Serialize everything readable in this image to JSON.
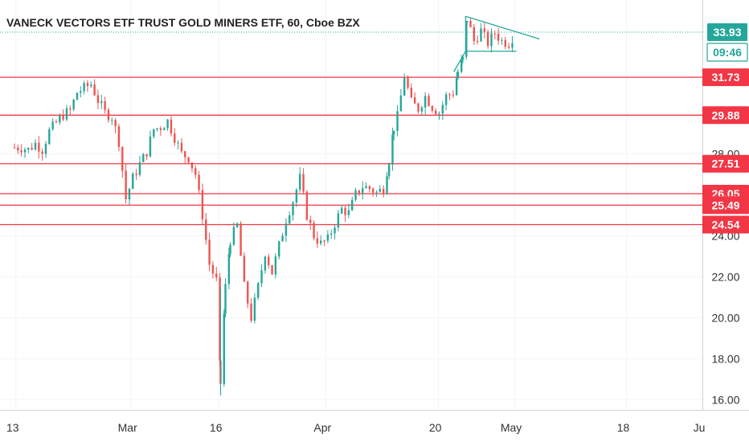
{
  "chart_data": {
    "type": "candlestick",
    "title": "VANECK VECTORS ETF TRUST GOLD MINERS ETF, 60, Cboe BZX",
    "ylim": [
      15.5,
      35.5
    ],
    "y_ticks": [
      {
        "value": 16,
        "label": "16.00"
      },
      {
        "value": 18,
        "label": "18.00"
      },
      {
        "value": 20,
        "label": "20.00"
      },
      {
        "value": 22,
        "label": "22.00"
      },
      {
        "value": 24,
        "label": "24.00"
      },
      {
        "value": 28,
        "label": "28.00"
      }
    ],
    "x_ticks": [
      {
        "label": "13",
        "slot": 0.2
      },
      {
        "label": "Mar",
        "slot": 16.7
      },
      {
        "label": "16",
        "slot": 29.4
      },
      {
        "label": "Apr",
        "slot": 44.7
      },
      {
        "label": "20",
        "slot": 60.9
      },
      {
        "label": "May",
        "slot": 71.8
      },
      {
        "label": "18",
        "slot": 87.9
      },
      {
        "label": "Ju",
        "slot": 98.8
      }
    ],
    "slot_range": [
      0,
      98.8
    ],
    "price_badge": {
      "value": "33.93",
      "countdown": "09:46",
      "color": "#26a69a"
    },
    "horizontal_levels": [
      {
        "value": 31.73,
        "label": "31.73"
      },
      {
        "value": 29.88,
        "label": "29.88"
      },
      {
        "value": 27.51,
        "label": "27.51"
      },
      {
        "value": 26.05,
        "label": "26.05"
      },
      {
        "value": 25.49,
        "label": "25.49"
      },
      {
        "value": 24.54,
        "label": "24.54"
      }
    ],
    "level_color": "#f23645",
    "last_price_line": {
      "value": 33.93,
      "color": "#26a69a"
    },
    "trendlines": [
      {
        "from": [
          64.8,
          34.7
        ],
        "to": [
          75.4,
          33.6
        ]
      },
      {
        "from": [
          64.8,
          33.0
        ],
        "to": [
          72.1,
          33.0
        ]
      },
      {
        "from": [
          63.1,
          32.0
        ],
        "to": [
          64.8,
          33.0
        ]
      },
      {
        "from": [
          64.8,
          33.0
        ],
        "to": [
          64.8,
          34.7
        ]
      }
    ],
    "trendline_color": "#26a69a",
    "series": [
      {
        "name": "",
        "points": [
          [
            0.0,
            28.3
          ],
          [
            1.0,
            28.3
          ],
          [
            2.0,
            28.2
          ],
          [
            3.0,
            28.5
          ],
          [
            4.0,
            28.2
          ],
          [
            5.0,
            29.1
          ],
          [
            6.0,
            29.5
          ],
          [
            7.0,
            29.9
          ],
          [
            8.0,
            30.1
          ],
          [
            9.0,
            31.0
          ],
          [
            10.0,
            31.2
          ],
          [
            11.0,
            31.4
          ],
          [
            12.0,
            30.6
          ],
          [
            13.0,
            30.0
          ],
          [
            14.0,
            29.8
          ],
          [
            15.0,
            28.6
          ],
          [
            16.0,
            25.8
          ],
          [
            17.0,
            26.8
          ],
          [
            18.0,
            27.5
          ],
          [
            19.0,
            28.1
          ],
          [
            20.0,
            29.2
          ],
          [
            21.0,
            29.3
          ],
          [
            22.0,
            29.6
          ],
          [
            23.0,
            28.8
          ],
          [
            24.0,
            28.0
          ],
          [
            25.0,
            27.8
          ],
          [
            26.0,
            27.0
          ],
          [
            27.0,
            25.0
          ],
          [
            28.0,
            22.6
          ],
          [
            29.0,
            21.8
          ],
          [
            29.6,
            16.8
          ],
          [
            30.3,
            21.5
          ],
          [
            31.0,
            23.8
          ],
          [
            32.0,
            24.5
          ],
          [
            33.0,
            21.5
          ],
          [
            34.0,
            20.0
          ],
          [
            35.0,
            21.5
          ],
          [
            36.0,
            23.2
          ],
          [
            37.0,
            22.2
          ],
          [
            38.0,
            23.5
          ],
          [
            39.0,
            24.8
          ],
          [
            40.0,
            25.7
          ],
          [
            41.0,
            26.8
          ],
          [
            42.0,
            25.0
          ],
          [
            43.0,
            24.0
          ],
          [
            44.0,
            23.6
          ],
          [
            45.0,
            23.8
          ],
          [
            46.0,
            24.6
          ],
          [
            47.0,
            25.3
          ],
          [
            48.0,
            25.1
          ],
          [
            49.0,
            26.0
          ],
          [
            50.0,
            26.4
          ],
          [
            51.0,
            26.3
          ],
          [
            52.0,
            26.1
          ],
          [
            53.0,
            26.3
          ],
          [
            53.8,
            27.7
          ],
          [
            54.5,
            29.3
          ],
          [
            55.0,
            29.8
          ],
          [
            56.0,
            31.8
          ],
          [
            57.0,
            30.5
          ],
          [
            58.0,
            30.2
          ],
          [
            59.0,
            30.8
          ],
          [
            60.0,
            30.3
          ],
          [
            61.0,
            30.0
          ],
          [
            62.0,
            30.8
          ],
          [
            63.0,
            31.0
          ],
          [
            63.7,
            32.0
          ],
          [
            64.4,
            32.6
          ],
          [
            65.0,
            34.6
          ],
          [
            66.0,
            33.5
          ],
          [
            67.0,
            34.0
          ],
          [
            68.0,
            33.4
          ],
          [
            69.0,
            33.9
          ],
          [
            70.0,
            33.5
          ],
          [
            71.0,
            33.4
          ],
          [
            72.0,
            33.93
          ]
        ]
      }
    ],
    "up_color": "#26a69a",
    "down_color": "#ef5350"
  }
}
